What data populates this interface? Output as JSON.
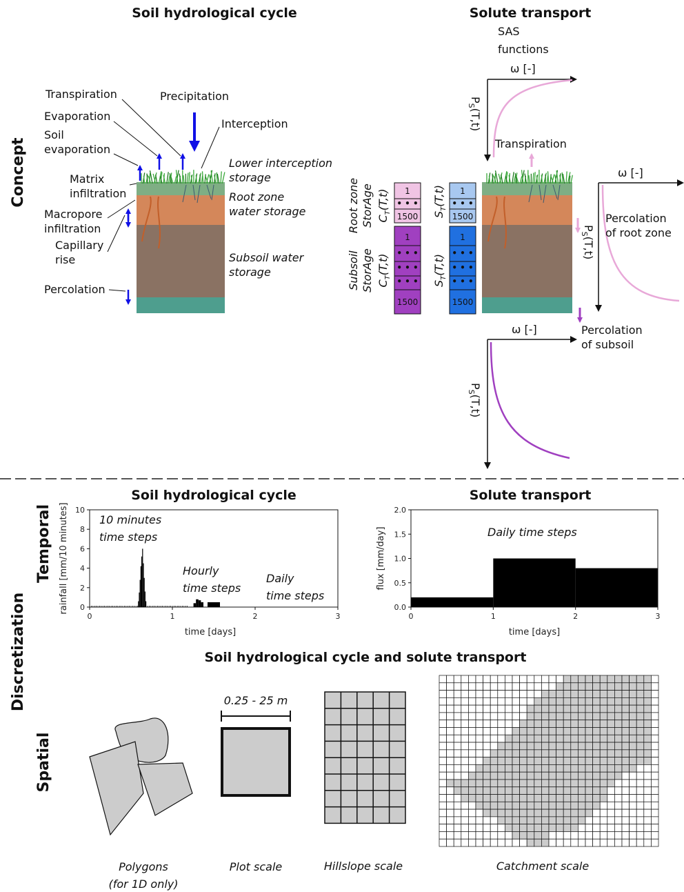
{
  "sections": {
    "concept": "Concept",
    "discretization": "Discretization",
    "temporal": "Temporal",
    "spatial": "Spatial"
  },
  "concept": {
    "soil_title": "Soil hydrological cycle",
    "solute_title": "Solute transport",
    "soil_labels": {
      "transpiration": "Transpiration",
      "precipitation": "Precipitation",
      "evaporation": "Evaporation",
      "interception": "Interception",
      "soil_evaporation": [
        "Soil",
        "evaporation"
      ],
      "matrix_infiltration": [
        "Matrix",
        "infiltration"
      ],
      "macropore_infiltration": [
        "Macropore",
        "infiltration"
      ],
      "capillary_rise": [
        "Capillary",
        "rise"
      ],
      "percolation": "Percolation",
      "lower_interception": [
        "Lower interception",
        "storage"
      ],
      "root_zone": [
        "Root zone",
        "water storage"
      ],
      "subsoil": [
        "Subsoil water",
        "storage"
      ]
    },
    "solute_labels": {
      "sas": [
        "SAS",
        "functions"
      ],
      "omega": "ω [-]",
      "ps": "P",
      "ps_sub": "S",
      "ps_arg": "(T,t)",
      "transpiration": "Transpiration",
      "perc_root": [
        "Percolation",
        "of root zone"
      ],
      "perc_sub": [
        "Percolation",
        "of subsoil"
      ],
      "rz_storage": [
        "Root zone",
        "StorAge"
      ],
      "ss_storage": [
        "Subsoil",
        "StorAge"
      ],
      "ct": "C",
      "ct_sub": "T",
      "ct_arg": "(T,t)",
      "st": "S",
      "st_sub": "T",
      "st_arg": "(T,t)",
      "cell_first": "1",
      "cell_dots": "• • •",
      "cell_last": "1500"
    }
  },
  "temporal": {
    "soil_title": "Soil hydrological cycle",
    "solute_title": "Solute transport",
    "notes": {
      "min10": [
        "10 minutes",
        "time steps"
      ],
      "hourly": [
        "Hourly",
        "time steps"
      ],
      "daily_left": [
        "Daily",
        "time steps"
      ],
      "daily_right": "Daily time steps"
    }
  },
  "spatial": {
    "title": "Soil hydrological cycle and solute transport",
    "plot_size": "0.25 - 25 m",
    "captions": {
      "polygons": [
        "Polygons",
        "(for 1D only)"
      ],
      "plot": "Plot scale",
      "hillslope": "Hillslope scale",
      "catchment": "Catchment scale"
    }
  },
  "colors": {
    "blue_arrow": "#1010e6",
    "grass": "#2e9a2e",
    "interception_layer": "#7fae84",
    "root_zone": "#d4875a",
    "subsoil": "#8a7263",
    "bottom_layer": "#4e9e8e",
    "pink": "#e8a8d8",
    "magenta": "#a040c0",
    "light_blue": "#a8c8f0",
    "blue": "#2070e0",
    "grid_fill": "#cccccc"
  },
  "chart_data": [
    {
      "type": "bar",
      "xlabel": "time [days]",
      "ylabel": "rainfall [mm/10 minutes]",
      "xlim": [
        0,
        3
      ],
      "ylim": [
        0,
        10
      ],
      "xticks": [
        0,
        1,
        2,
        3
      ],
      "yticks": [
        0,
        2,
        4,
        6,
        8,
        10
      ],
      "x": [
        0.59,
        0.6,
        0.61,
        0.62,
        0.63,
        0.64,
        0.65,
        0.66,
        0.67,
        0.68,
        1.27,
        1.3,
        1.33,
        1.36,
        1.45,
        1.5,
        1.55
      ],
      "values": [
        0.6,
        1.5,
        2.8,
        4.2,
        5.2,
        6.0,
        4.5,
        3.0,
        1.6,
        0.6,
        0.4,
        0.8,
        0.7,
        0.5,
        0.5,
        0.5,
        0.5
      ],
      "width": [
        0.01,
        0.01,
        0.01,
        0.01,
        0.01,
        0.01,
        0.01,
        0.01,
        0.01,
        0.01,
        0.03,
        0.03,
        0.03,
        0.03,
        0.05,
        0.05,
        0.05
      ],
      "baseline_ticks": "10 minutes"
    },
    {
      "type": "bar",
      "xlabel": "time [days]",
      "ylabel": "flux [mm/day]",
      "xlim": [
        0,
        3
      ],
      "ylim": [
        0,
        2.0
      ],
      "xticks": [
        0,
        1,
        2,
        3
      ],
      "yticks": [
        "0.0",
        "0.5",
        "1.0",
        "1.5",
        "2.0"
      ],
      "categories": [
        "0-1",
        "1-2",
        "2-3"
      ],
      "values": [
        0.2,
        1.0,
        0.8
      ]
    }
  ]
}
